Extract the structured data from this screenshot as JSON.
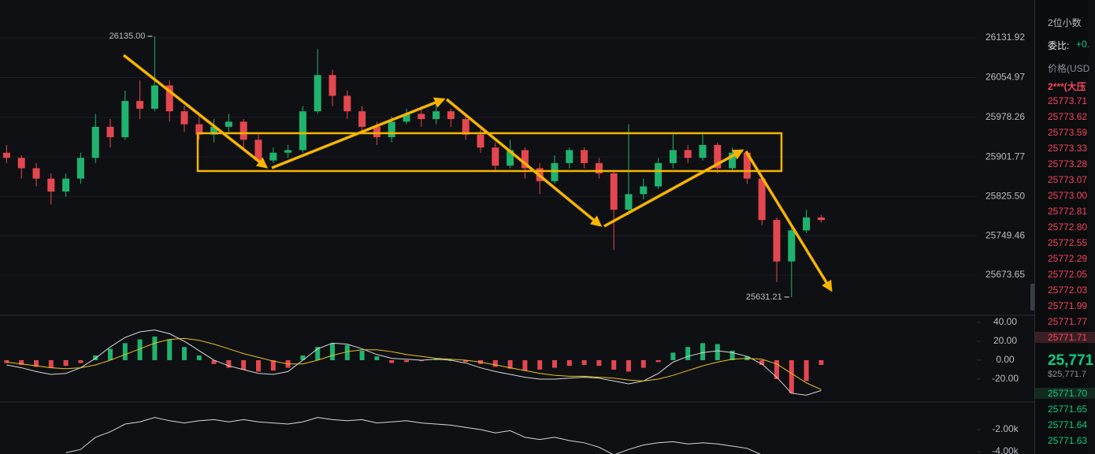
{
  "chart_data": [
    {
      "type": "candlestick",
      "up_color": "#1fb46e",
      "down_color": "#e5474f",
      "open": [
        25910,
        25900,
        25880,
        25860,
        25835,
        25860,
        25900,
        25960,
        25940,
        26010,
        25995,
        26040,
        25990,
        25965,
        25945,
        25960,
        25970,
        25935,
        25895,
        25910,
        25915,
        25990,
        26060,
        26020,
        25990,
        25960,
        25940,
        25970,
        25985,
        25975,
        25990,
        25975,
        25945,
        25920,
        25885,
        25915,
        25880,
        25855,
        25890,
        25915,
        25890,
        25870,
        25800,
        25830,
        25845,
        25890,
        25915,
        25900,
        25925,
        25880,
        25910,
        25860,
        25780,
        25700,
        25760,
        25785
      ],
      "high": [
        25925,
        25905,
        25890,
        25870,
        25870,
        25910,
        25985,
        25975,
        26030,
        26050,
        26135,
        26050,
        26000,
        25980,
        25975,
        25985,
        25975,
        25945,
        25920,
        25925,
        26000,
        26110,
        26070,
        26030,
        26000,
        25970,
        25980,
        25995,
        26000,
        26010,
        25995,
        25980,
        25955,
        25930,
        25935,
        25920,
        25890,
        25905,
        25920,
        25920,
        25900,
        25875,
        25965,
        25860,
        25900,
        25945,
        25925,
        25945,
        25930,
        25920,
        25915,
        25865,
        25785,
        25770,
        25800,
        25790
      ],
      "low": [
        25890,
        25860,
        25845,
        25810,
        25825,
        25850,
        25890,
        25920,
        25935,
        25975,
        25990,
        25970,
        25950,
        25935,
        25930,
        25950,
        25920,
        25885,
        25890,
        25900,
        25910,
        25985,
        26000,
        25975,
        25950,
        25925,
        25930,
        25965,
        25960,
        25965,
        25960,
        25935,
        25910,
        25875,
        25880,
        25860,
        25830,
        25850,
        25880,
        25880,
        25860,
        25722,
        25790,
        25820,
        25840,
        25880,
        25890,
        25895,
        25870,
        25875,
        25850,
        25770,
        25660,
        25631.21,
        25755,
        25775
      ],
      "close": [
        25900,
        25880,
        25860,
        25835,
        25860,
        25900,
        25960,
        25940,
        26010,
        25995,
        26040,
        25990,
        25965,
        25945,
        25960,
        25970,
        25935,
        25895,
        25910,
        25915,
        25990,
        26060,
        26020,
        25990,
        25960,
        25940,
        25970,
        25985,
        25975,
        25990,
        25975,
        25945,
        25920,
        25885,
        25915,
        25880,
        25855,
        25890,
        25915,
        25890,
        25870,
        25800,
        25830,
        25845,
        25890,
        25915,
        25900,
        25925,
        25880,
        25910,
        25860,
        25780,
        25700,
        25760,
        25785,
        25780
      ],
      "high_label": "26135.00",
      "low_label": "25631.21",
      "ylim": [
        25596,
        26205
      ],
      "yticks": [
        26131.92,
        26054.97,
        25978.26,
        25901.77,
        {
          "value": 25825.5,
          "label": "25825.50"
        },
        25749.46,
        25673.65
      ],
      "grid": true
    },
    {
      "type": "macd",
      "up_color": "#1fb46e",
      "down_color": "#e5474f",
      "histogram": [
        -3,
        -5,
        -7,
        -8,
        -6,
        -3,
        5,
        12,
        18,
        22,
        25,
        22,
        14,
        5,
        -4,
        -8,
        -10,
        -12,
        -11,
        -8,
        5,
        14,
        18,
        16,
        10,
        4,
        -3,
        -2,
        -1,
        1,
        0,
        -2,
        -4,
        -7,
        -9,
        -11,
        -10,
        -8,
        -6,
        -5,
        -6,
        -10,
        -12,
        -8,
        -2,
        8,
        14,
        18,
        17,
        10,
        4,
        -5,
        -20,
        -35,
        -22,
        -5
      ],
      "lines": [
        {
          "color": "#d8d8d8",
          "values": [
            -5,
            -8,
            -12,
            -15,
            -14,
            -8,
            2,
            14,
            24,
            30,
            32,
            28,
            20,
            10,
            0,
            -6,
            -10,
            -14,
            -15,
            -12,
            0,
            12,
            18,
            17,
            12,
            6,
            2,
            1,
            0,
            1,
            0,
            -3,
            -8,
            -12,
            -15,
            -18,
            -20,
            -20,
            -19,
            -18,
            -19,
            -22,
            -25,
            -22,
            -14,
            -2,
            4,
            8,
            10,
            8,
            4,
            -4,
            -18,
            -35,
            -37,
            -32
          ]
        },
        {
          "color": "#e8c420",
          "values": [
            -2,
            -4,
            -6,
            -8,
            -9,
            -8,
            -5,
            0,
            6,
            12,
            18,
            22,
            23,
            21,
            17,
            12,
            7,
            3,
            -1,
            -4,
            -4,
            0,
            5,
            9,
            11,
            11,
            9,
            6,
            4,
            2,
            1,
            0,
            -2,
            -5,
            -8,
            -11,
            -14,
            -16,
            -17,
            -17,
            -18,
            -19,
            -21,
            -22,
            -20,
            -16,
            -11,
            -6,
            -2,
            1,
            2,
            1,
            -4,
            -14,
            -24,
            -31
          ]
        }
      ],
      "ylim": [
        -44.2,
        47.5
      ],
      "yticks": [
        {
          "value": 40,
          "label": "40.00"
        },
        {
          "value": 20,
          "label": "20.00"
        },
        {
          "value": 0,
          "label": "0.00"
        },
        {
          "value": -20,
          "label": "-20.00"
        }
      ]
    },
    {
      "type": "line",
      "color": "#d8d8d8",
      "values": [
        null,
        null,
        null,
        null,
        -4100,
        -3800,
        -2700,
        -2200,
        -1500,
        -1300,
        -900,
        -1200,
        -1400,
        -1200,
        -1100,
        -1300,
        -1100,
        -1300,
        -1400,
        -1500,
        -1300,
        -900,
        -1100,
        -1200,
        -1100,
        -1400,
        -1300,
        -1200,
        -1400,
        -1500,
        -1600,
        -1800,
        -2000,
        -2300,
        -2100,
        -2700,
        -2900,
        -2700,
        -3000,
        -3200,
        -3600,
        -4300,
        -3800,
        -3400,
        -3200,
        -3100,
        -3300,
        -3200,
        -3300,
        -3500,
        -3700,
        -4300,
        null,
        null,
        null,
        null
      ],
      "ylim": [
        -4214,
        500
      ],
      "yticks": [
        {
          "value": -2000,
          "label": "-2.00k"
        },
        {
          "value": -4000,
          "label": "-4.00k"
        }
      ]
    }
  ],
  "order_book": {
    "precision": "2位小数",
    "ratio_label": "委比:",
    "ratio_value": "+0.",
    "price_header": "价格(USD",
    "user": "2***(大压",
    "asks": [
      "25773.71",
      "25773.62",
      "25773.59",
      "25773.33",
      "25773.28",
      "25773.07",
      "25773.00",
      "25772.81",
      "25772.80",
      "25772.55",
      "25772.29",
      "25772.05",
      "25772.03",
      "25771.99",
      "25771.77",
      "25771.71"
    ],
    "last_price": "25,771",
    "last_price_usd": "$25,771.7",
    "bids": [
      "25771.70",
      "25771.65",
      "25771.64",
      "25771.63"
    ]
  }
}
